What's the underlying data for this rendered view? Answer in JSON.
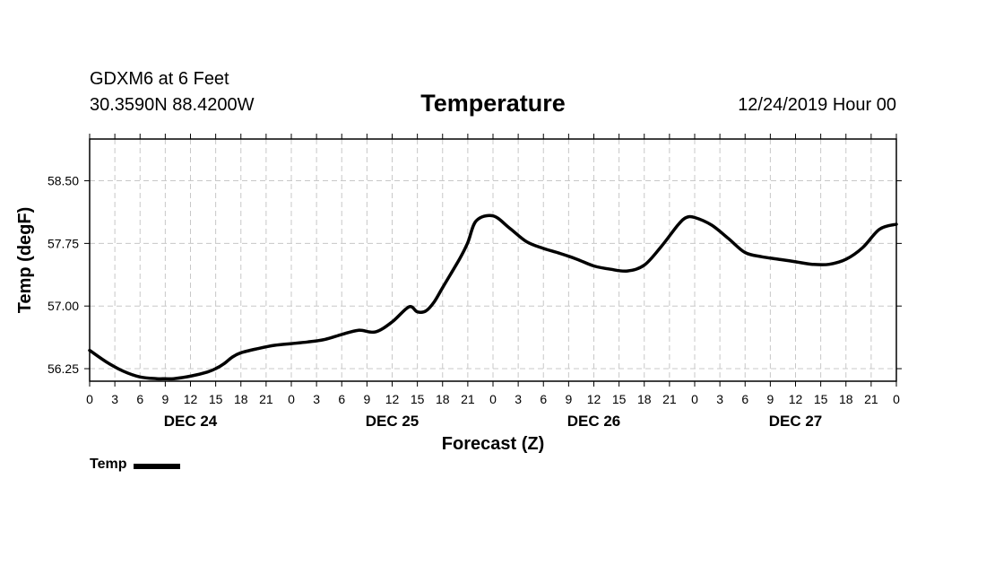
{
  "header": {
    "station": "GDXM6 at 6 Feet",
    "coords": "30.3590N 88.4200W",
    "title": "Temperature",
    "datetime": "12/24/2019 Hour 00"
  },
  "legend": {
    "label": "Temp",
    "swatch_icon": "line-swatch-icon"
  },
  "colors": {
    "line": "#000000",
    "grid": "#c8c8c8",
    "axes": "#000000",
    "background": "#ffffff"
  },
  "chart_data": {
    "type": "line",
    "title": "Temperature",
    "xlabel": "Forecast (Z)",
    "ylabel": "Temp (degF)",
    "xlim": [
      0,
      96
    ],
    "ylim": [
      56.1,
      59.0
    ],
    "yticks": [
      56.25,
      57.0,
      57.75,
      58.5
    ],
    "ytick_labels": [
      "56.25",
      "57.00",
      "57.75",
      "58.50"
    ],
    "xtick_step_hours": 3,
    "xtick_labels": [
      "0",
      "3",
      "6",
      "9",
      "12",
      "15",
      "18",
      "21",
      "0",
      "3",
      "6",
      "9",
      "12",
      "15",
      "18",
      "21",
      "0",
      "3",
      "6",
      "9",
      "12",
      "15",
      "18",
      "21",
      "0",
      "3",
      "6",
      "9",
      "12",
      "15",
      "18",
      "21",
      "0"
    ],
    "day_labels": [
      {
        "hour": 12,
        "label": "DEC 24"
      },
      {
        "hour": 36,
        "label": "DEC 25"
      },
      {
        "hour": 60,
        "label": "DEC 26"
      },
      {
        "hour": 84,
        "label": "DEC 27"
      }
    ],
    "grid": true,
    "legend_position": "bottom-left",
    "series": [
      {
        "name": "Temp",
        "x": [
          0,
          2,
          4,
          6,
          8,
          9,
          10,
          12,
          14,
          15,
          16,
          17,
          18,
          20,
          22,
          24,
          26,
          28,
          30,
          32,
          34,
          36,
          38,
          39,
          40,
          41,
          42,
          44,
          45,
          46,
          48,
          50,
          52,
          54,
          56,
          58,
          60,
          62,
          64,
          66,
          68,
          70,
          71,
          72,
          74,
          76,
          78,
          80,
          82,
          84,
          86,
          88,
          90,
          92,
          94,
          96
        ],
        "values": [
          56.47,
          56.33,
          56.22,
          56.15,
          56.13,
          56.13,
          56.13,
          56.16,
          56.21,
          56.25,
          56.31,
          56.39,
          56.44,
          56.49,
          56.53,
          56.55,
          56.57,
          56.6,
          56.66,
          56.71,
          56.69,
          56.81,
          56.99,
          56.93,
          56.94,
          57.05,
          57.22,
          57.56,
          57.76,
          58.02,
          58.08,
          57.93,
          57.77,
          57.69,
          57.63,
          57.56,
          57.48,
          57.44,
          57.42,
          57.49,
          57.71,
          57.97,
          58.06,
          58.06,
          57.97,
          57.81,
          57.64,
          57.59,
          57.56,
          57.53,
          57.5,
          57.5,
          57.56,
          57.7,
          57.92,
          57.98
        ]
      }
    ]
  }
}
